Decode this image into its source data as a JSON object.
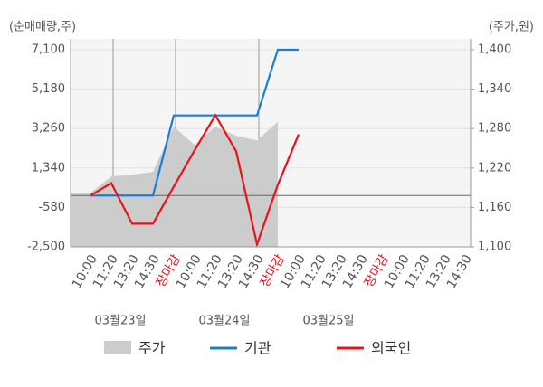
{
  "chart_data": {
    "type": "line",
    "y_label": "(순매매량,주)",
    "y2_label": "(주가,원)",
    "categories": [
      "10:00",
      "11:20",
      "13:20",
      "14:30",
      "장마감",
      "10:00",
      "11:20",
      "13:20",
      "14:30",
      "장마감",
      "10:00",
      "11:20",
      "13:20",
      "14:30",
      "장마감",
      "10:00",
      "11:20",
      "13:20",
      "14:30"
    ],
    "x_group_labels": [
      "03월23일",
      "03월24일",
      "03월25일"
    ],
    "series": [
      {
        "name": "주가",
        "color": "#cccccc",
        "axis": "y2",
        "values": [
          1182,
          1207,
          1210,
          1214,
          1283,
          1255,
          1283,
          1269,
          1262,
          1290,
          null,
          null,
          null,
          null,
          null,
          null,
          null,
          null,
          null
        ]
      },
      {
        "name": "기관",
        "color": "#1a7fd4",
        "values": [
          0,
          0,
          0,
          0,
          3900,
          3900,
          3900,
          3900,
          3900,
          7100,
          7100,
          null,
          null,
          null,
          null,
          null,
          null,
          null,
          null
        ]
      },
      {
        "name": "외국인",
        "color": "#e8141c",
        "values": [
          0,
          600,
          -1370,
          -1370,
          430,
          2200,
          3910,
          2150,
          -2380,
          520,
          2980,
          null,
          null,
          null,
          null,
          null,
          null,
          null,
          null
        ]
      }
    ],
    "ylim": [
      -2500,
      7100
    ],
    "yticks": [
      {
        "value": -2500,
        "label": "-2,500"
      },
      -580,
      {
        "value": 1340,
        "label": "1,340"
      },
      {
        "value": 3260,
        "label": "3,260"
      },
      {
        "value": 5180,
        "label": "5,180"
      },
      {
        "value": 7100,
        "label": "7,100"
      }
    ],
    "y2lim": [
      1100,
      1400
    ],
    "y2ticks": [
      {
        "value": 1100,
        "label": "1,100"
      },
      {
        "value": 1160,
        "label": "1,160"
      },
      {
        "value": 1220,
        "label": "1,220"
      },
      {
        "value": 1280,
        "label": "1,280"
      },
      {
        "value": 1340,
        "label": "1,340"
      },
      {
        "value": 1400,
        "label": "1,400"
      }
    ],
    "grid": true
  }
}
